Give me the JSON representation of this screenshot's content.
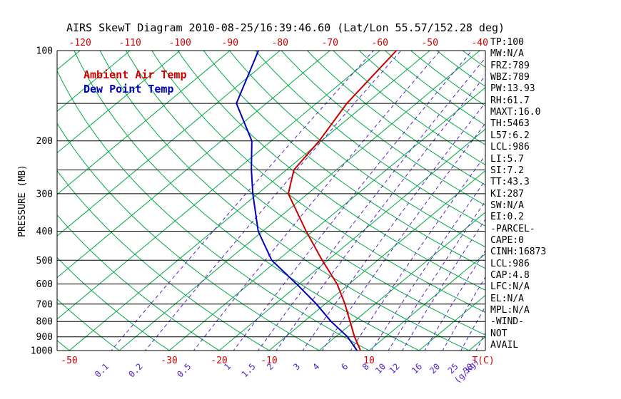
{
  "chart_data": {
    "type": "line",
    "title": "AIRS SkewT Diagram 2010-08-25/16:39:46.60 (Lat/Lon 55.57/152.28 deg)",
    "legend": {
      "air_temp": "Ambient Air Temp",
      "dew_point": "Dew Point Temp"
    },
    "colors": {
      "air_temp": "#cc0000",
      "dew_point": "#0000bb",
      "isotherm": "#00aa44",
      "mixing_ratio": "#5522cc",
      "grid": "#000000",
      "tick_red": "#cc0000"
    },
    "y_axis": {
      "label": "PRESSURE (MB)",
      "scale": "log",
      "range_mb": [
        100,
        1000
      ],
      "ticks_mb": [
        100,
        200,
        300,
        400,
        500,
        600,
        700,
        800,
        900,
        1000
      ],
      "minor_lines_mb": [
        150,
        250
      ]
    },
    "x_axis_top": {
      "ticks_c": [
        -120,
        -110,
        -100,
        -90,
        -80,
        -70,
        -60,
        -50,
        -40
      ]
    },
    "x_axis_bottom": {
      "ticks_c": [
        -50,
        -30,
        -20,
        -10,
        10
      ],
      "unit": "T(C)"
    },
    "mixing_ratio_lines": {
      "values_gkg": [
        0.1,
        0.2,
        0.5,
        1,
        1.5,
        2,
        3,
        4,
        6,
        8,
        10,
        12,
        16,
        20,
        25,
        30
      ],
      "unit": "(g/kg)"
    },
    "isotherms_c": {
      "min": -120,
      "max": 40,
      "step": 10
    },
    "dry_adiabats_c": {
      "min": -60,
      "max": 180,
      "step": 10
    },
    "series": [
      {
        "name": "Ambient Air Temp",
        "color": "#cc0000",
        "points_mb_c": [
          [
            1000,
            8.3
          ],
          [
            900,
            3.8
          ],
          [
            800,
            -0.8
          ],
          [
            700,
            -6.0
          ],
          [
            600,
            -12.4
          ],
          [
            500,
            -21.1
          ],
          [
            400,
            -31.3
          ],
          [
            300,
            -43.9
          ],
          [
            250,
            -48.5
          ],
          [
            200,
            -50.4
          ],
          [
            150,
            -53.9
          ],
          [
            100,
            -56.7
          ]
        ]
      },
      {
        "name": "Dew Point Temp",
        "color": "#0000bb",
        "points_mb_c": [
          [
            1000,
            7.6
          ],
          [
            900,
            2.4
          ],
          [
            800,
            -4.6
          ],
          [
            700,
            -11.7
          ],
          [
            600,
            -20.5
          ],
          [
            500,
            -31.2
          ],
          [
            400,
            -40.9
          ],
          [
            300,
            -51.0
          ],
          [
            250,
            -57.0
          ],
          [
            200,
            -63.9
          ],
          [
            150,
            -76.0
          ],
          [
            100,
            -84.3
          ]
        ]
      }
    ],
    "stats_panel": [
      "TP:100",
      "MW:N/A",
      "FRZ:789",
      "WBZ:789",
      "PW:13.93",
      "RH:61.7",
      "MAXT:16.0",
      "TH:5463",
      "L57:6.2",
      "LCL:986",
      "LI:5.7",
      "SI:7.2",
      "TT:43.3",
      "KI:287",
      "SW:N/A",
      "EI:0.2",
      "-PARCEL-",
      "CAPE:0",
      "CINH:16873",
      "LCL:986",
      "CAP:4.8",
      "LFC:N/A",
      "EL:N/A",
      "MPL:N/A",
      "-WIND-",
      "NOT",
      "AVAIL"
    ]
  }
}
